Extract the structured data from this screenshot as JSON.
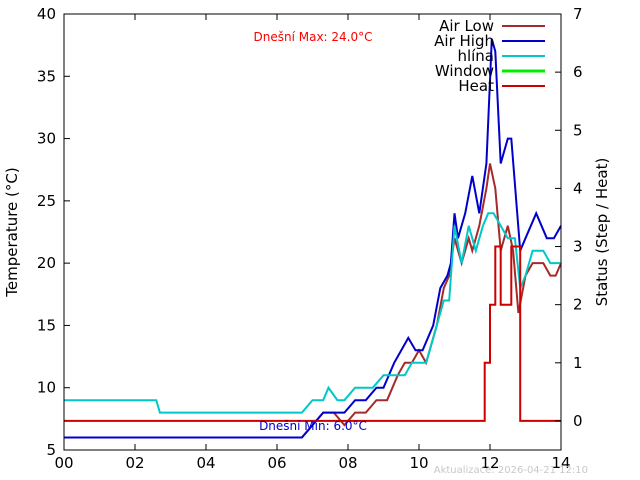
{
  "chart_data": {
    "type": "line",
    "xlabel": "",
    "ylabel": "Temperature (°C)",
    "y2label": "Status (Step / Heat)",
    "xlim": [
      0,
      14
    ],
    "ylim": [
      5,
      40
    ],
    "y2lim": [
      -0.5,
      7
    ],
    "x_ticks": [
      "00",
      "02",
      "04",
      "06",
      "08",
      "10",
      "12",
      "14"
    ],
    "y_ticks": [
      "5",
      "10",
      "15",
      "20",
      "25",
      "30",
      "35",
      "40"
    ],
    "y2_ticks": [
      "0",
      "1",
      "2",
      "3",
      "4",
      "5",
      "6",
      "7"
    ],
    "grid": false,
    "legend_position": "top-right",
    "annotations": {
      "max": "Dnešní Max: 24.0°C",
      "min": "Dnešní Min: 6.0°C"
    },
    "footer": "Aktualizace: 2026-04-21 12:10",
    "series": [
      {
        "name": "Air Low",
        "color": "#a52a2a",
        "axis": "y",
        "x": [
          0,
          6.7,
          7.0,
          7.3,
          7.6,
          7.9,
          8.2,
          8.5,
          8.8,
          9.1,
          9.4,
          9.6,
          9.8,
          10.0,
          10.2,
          10.5,
          10.7,
          10.85,
          11.0,
          11.2,
          11.4,
          11.5,
          11.7,
          11.9,
          12.0,
          12.15,
          12.3,
          12.5,
          12.65,
          12.8,
          13.0,
          13.2,
          13.5,
          13.7,
          13.85,
          14.0
        ],
        "y": [
          6,
          6,
          7,
          8,
          8,
          7,
          8,
          8,
          9,
          9,
          11,
          12,
          12,
          13,
          12,
          15,
          18,
          19,
          22,
          20,
          22,
          21,
          23,
          26,
          28,
          26,
          21,
          23,
          21,
          16,
          19,
          20,
          20,
          19,
          19,
          20
        ]
      },
      {
        "name": "Air High",
        "color": "#0000cc",
        "axis": "y",
        "x": [
          0,
          6.7,
          7.0,
          7.3,
          7.6,
          7.9,
          8.2,
          8.5,
          8.8,
          9.0,
          9.3,
          9.5,
          9.7,
          9.9,
          10.1,
          10.4,
          10.6,
          10.8,
          10.9,
          11.0,
          11.1,
          11.3,
          11.5,
          11.7,
          11.9,
          12.05,
          12.15,
          12.3,
          12.5,
          12.6,
          12.85,
          13.0,
          13.3,
          13.6,
          13.8,
          14.0
        ],
        "y": [
          6,
          6,
          7,
          8,
          8,
          8,
          9,
          9,
          10,
          10,
          12,
          13,
          14,
          13,
          13,
          15,
          18,
          19,
          20,
          24,
          22,
          24,
          27,
          24,
          28,
          38,
          37,
          28,
          30,
          30,
          21,
          22,
          24,
          22,
          22,
          23
        ]
      },
      {
        "name": "hlína",
        "color": "#00c8c8",
        "axis": "y",
        "x": [
          0,
          2.6,
          2.7,
          6.7,
          7.0,
          7.3,
          7.45,
          7.7,
          7.9,
          8.2,
          8.5,
          8.7,
          9.0,
          9.3,
          9.6,
          9.8,
          10.0,
          10.2,
          10.5,
          10.7,
          10.85,
          11.0,
          11.2,
          11.4,
          11.6,
          11.8,
          11.95,
          12.1,
          12.3,
          12.5,
          12.7,
          12.85,
          13.0,
          13.2,
          13.5,
          13.7,
          14.0
        ],
        "y": [
          9,
          9,
          8,
          8,
          9,
          9,
          10,
          9,
          9,
          10,
          10,
          10,
          11,
          11,
          11,
          12,
          12,
          12,
          15,
          17,
          17,
          23,
          20,
          23,
          21,
          23,
          24,
          24,
          23,
          22,
          22,
          18,
          19,
          21,
          21,
          20,
          20
        ]
      },
      {
        "name": "Window",
        "color": "#00ee00",
        "axis": "y2",
        "x": [],
        "y": []
      },
      {
        "name": "Heat",
        "color": "#cc0000",
        "axis": "y2",
        "x": [
          0,
          11.85,
          11.85,
          12.0,
          12.0,
          12.15,
          12.15,
          12.3,
          12.3,
          12.6,
          12.6,
          12.85,
          12.85,
          14.0
        ],
        "y": [
          0,
          0,
          1,
          1,
          2,
          2,
          3,
          3,
          2,
          2,
          3,
          3,
          0,
          0
        ]
      }
    ]
  }
}
